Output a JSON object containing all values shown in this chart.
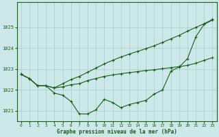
{
  "bg_color": "#cce8e8",
  "grid_color": "#aacccc",
  "line_color": "#1a5c1a",
  "marker_color": "#1a5c1a",
  "xlabel": "Graphe pression niveau de la mer (hPa)",
  "ylim": [
    1020.5,
    1026.2
  ],
  "yticks": [
    1021,
    1022,
    1023,
    1024,
    1025
  ],
  "xticks": [
    0,
    1,
    2,
    3,
    4,
    5,
    6,
    7,
    8,
    9,
    10,
    11,
    12,
    13,
    14,
    15,
    16,
    17,
    18,
    19,
    20,
    21,
    22,
    23
  ],
  "series1": [
    1022.75,
    1022.55,
    1022.2,
    1022.2,
    1021.85,
    1021.75,
    1021.45,
    1020.85,
    1020.85,
    1021.05,
    1021.55,
    1021.4,
    1021.15,
    1021.3,
    1021.4,
    1021.5,
    1021.8,
    1022.0,
    1022.9,
    1023.1,
    1023.5,
    1024.55,
    1025.15,
    1025.35
  ],
  "series2": [
    1022.75,
    1022.55,
    1022.2,
    1022.2,
    1022.1,
    1022.15,
    1022.25,
    1022.3,
    1022.45,
    1022.55,
    1022.65,
    1022.72,
    1022.78,
    1022.83,
    1022.88,
    1022.93,
    1022.97,
    1023.02,
    1023.07,
    1023.12,
    1023.18,
    1023.28,
    1023.42,
    1023.55
  ],
  "series3": [
    1022.75,
    1022.55,
    1022.2,
    1022.2,
    1022.1,
    1022.3,
    1022.5,
    1022.65,
    1022.85,
    1023.05,
    1023.25,
    1023.42,
    1023.58,
    1023.72,
    1023.85,
    1023.98,
    1024.12,
    1024.28,
    1024.45,
    1024.62,
    1024.82,
    1025.0,
    1025.18,
    1025.38
  ]
}
